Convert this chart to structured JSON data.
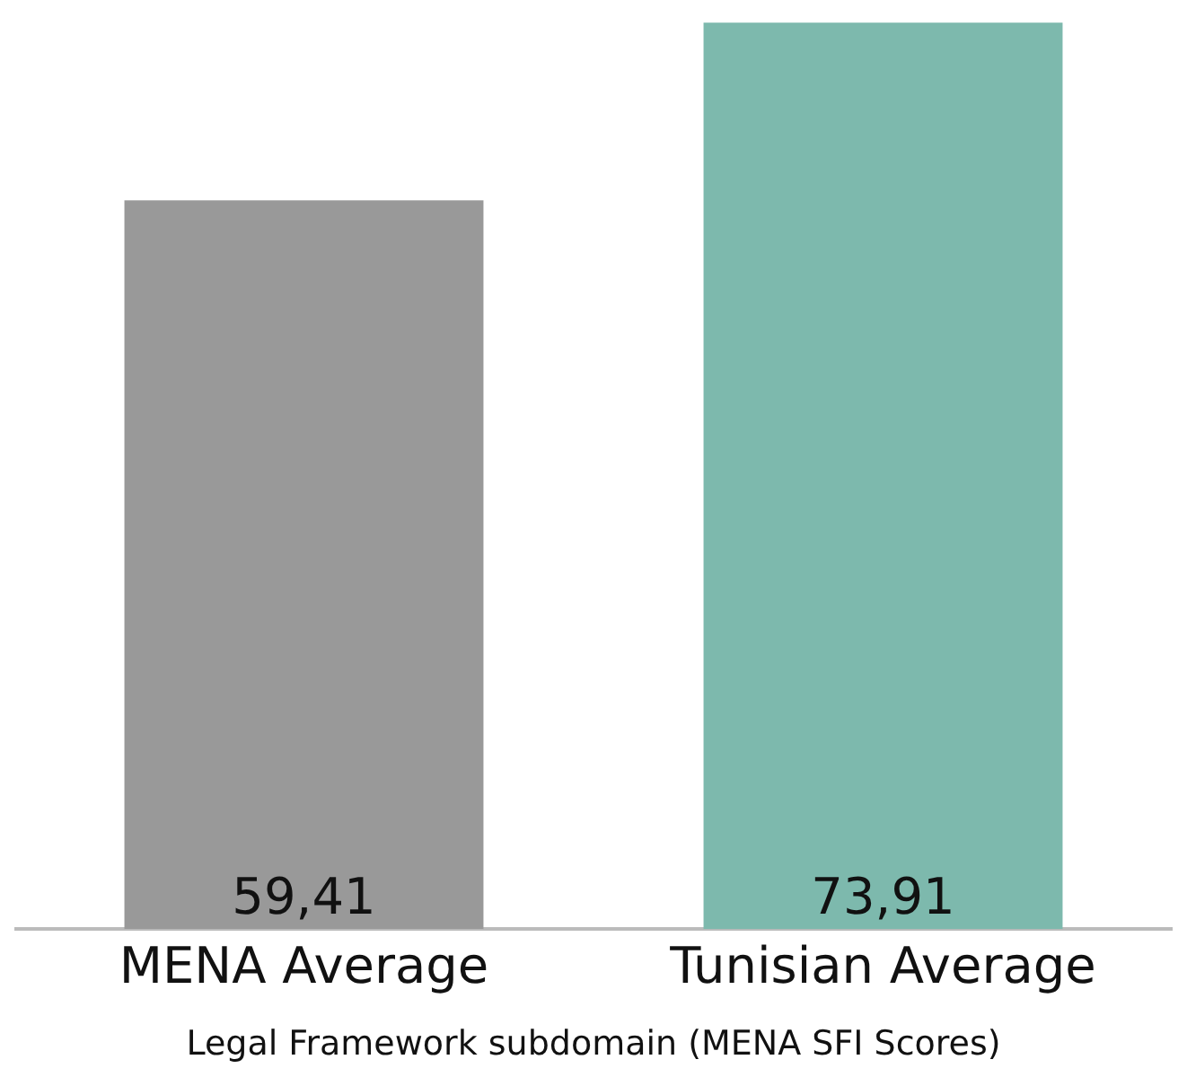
{
  "chart_data": {
    "type": "bar",
    "xlabel": "Legal Framework subdomain (MENA SFI Scores)",
    "categories": [
      "MENA Average",
      "Tunisian Average"
    ],
    "values": [
      59.41,
      73.91
    ],
    "colors": [
      "#999999",
      "#7db9ad"
    ],
    "value_labels": [
      "59,41",
      "73,91"
    ],
    "ylim": [
      0,
      74
    ],
    "grid": false,
    "legend": false
  }
}
